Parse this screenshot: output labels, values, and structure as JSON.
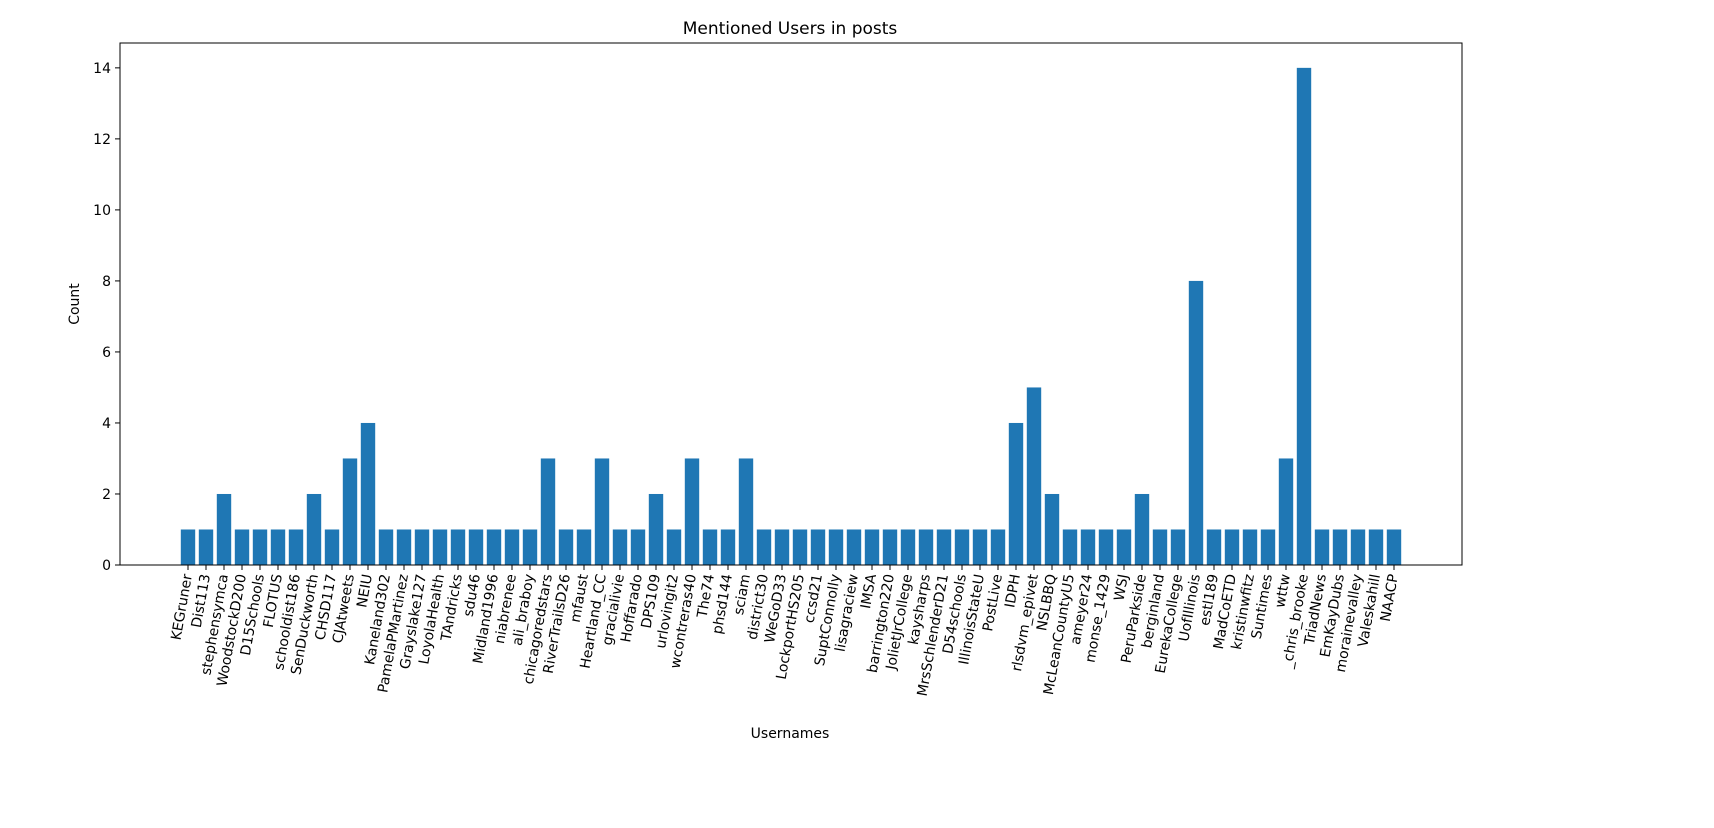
{
  "chart_data": {
    "type": "bar",
    "title": "Mentioned Users in posts",
    "xlabel": "Usernames",
    "ylabel": "Count",
    "categories": [
      "KEGruner",
      "Dist113",
      "stephensymca",
      "WoodstockD200",
      "D15Schools",
      "FLOTUS",
      "schooldist186",
      "SenDuckworth",
      "CHSD117",
      "CJAtweets",
      "NEIU",
      "Kaneland302",
      "PamelaPMartinez",
      "Grayslake127",
      "LoyolaHealth",
      "TAndricks",
      "sdu46",
      "Midland1996",
      "niabrenee",
      "ali_braboy",
      "chicagoredstars",
      "RiverTrailsD26",
      "mfaust",
      "Heartland_CC",
      "gracialivie",
      "Hoffarado",
      "DPS109",
      "urlovingit2",
      "wcontreras40",
      "The74",
      "phsd144",
      "sciam",
      "district30",
      "WeGoD33",
      "LockportHS205",
      "ccsd21",
      "SuptConnolly",
      "lisagraciew",
      "IMSA",
      "barrington220",
      "JolietJrCollege",
      "kaysharps",
      "MrsSchlenderD21",
      "D54schools",
      "IllinoisStateU",
      "PostLive",
      "IDPH",
      "rlsdvm_epivet",
      "NSLBBQ",
      "McLeanCountyU5",
      "ameyer24",
      "monse_1429",
      "WSJ",
      "PeruParkside",
      "berginland",
      "EurekaCollege",
      "UofIllinois",
      "estl189",
      "MadCoETD",
      "kristinwfitz",
      "Suntimes",
      "wttw",
      "_chris_brooke",
      "TriadNews",
      "EmKayDubs",
      "morainevalley",
      "Valeskahill",
      "NAACP"
    ],
    "values": [
      1,
      1,
      2,
      1,
      1,
      1,
      1,
      2,
      1,
      3,
      4,
      1,
      1,
      1,
      1,
      1,
      1,
      1,
      1,
      1,
      3,
      1,
      1,
      3,
      1,
      1,
      2,
      1,
      3,
      1,
      1,
      3,
      1,
      1,
      1,
      1,
      1,
      1,
      1,
      1,
      1,
      1,
      1,
      1,
      1,
      1,
      4,
      5,
      2,
      1,
      1,
      1,
      1,
      2,
      1,
      1,
      8,
      1,
      1,
      1,
      1,
      3,
      14,
      1,
      1,
      1,
      1,
      1
    ],
    "color": "#1f77b4",
    "ylim": [
      0,
      14.7
    ],
    "yticks": [
      0,
      2,
      4,
      6,
      8,
      10,
      12,
      14
    ],
    "grid": false
  }
}
